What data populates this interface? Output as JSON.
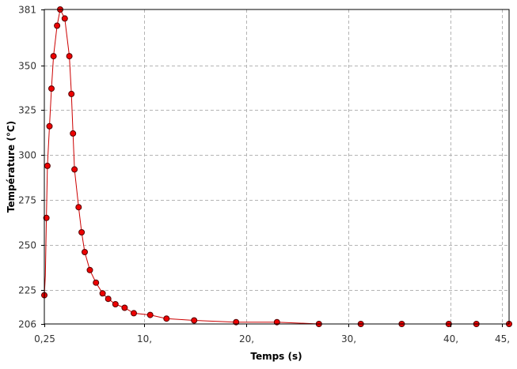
{
  "chart_data": {
    "type": "line",
    "xlabel": "Temps (s)",
    "ylabel": "Température (°C)",
    "xlim": [
      0.25,
      45.7
    ],
    "ylim": [
      206,
      381
    ],
    "xticks": [
      {
        "value": 0.25,
        "label": "0,25"
      },
      {
        "value": 10,
        "label": "10,"
      },
      {
        "value": 20,
        "label": "20,"
      },
      {
        "value": 30,
        "label": "30,"
      },
      {
        "value": 40,
        "label": "40,"
      },
      {
        "value": 45,
        "label": "45,"
      }
    ],
    "yticks": [
      {
        "value": 206,
        "label": "206"
      },
      {
        "value": 225,
        "label": "225"
      },
      {
        "value": 250,
        "label": "250"
      },
      {
        "value": 275,
        "label": "275"
      },
      {
        "value": 300,
        "label": "300"
      },
      {
        "value": 325,
        "label": "325"
      },
      {
        "value": 350,
        "label": "350"
      },
      {
        "value": 381,
        "label": "381"
      }
    ],
    "grid": true,
    "line_color": "#cc0000",
    "marker_color": "#ee0000",
    "marker_edge_color": "#550000",
    "series": [
      {
        "x": [
          0.25,
          0.35,
          0.45,
          0.55,
          0.75,
          0.95,
          1.15,
          1.5,
          1.8,
          2.25,
          2.7,
          2.9,
          3.05,
          3.2,
          3.6,
          3.9,
          4.2,
          4.7,
          5.3,
          5.95,
          6.5,
          7.2,
          8.1,
          9.0,
          10.6,
          12.2,
          14.9,
          19.0,
          23.0,
          27.1,
          31.2,
          35.2,
          39.8,
          42.5,
          45.7
        ],
        "y": [
          222,
          233,
          265,
          294,
          316,
          337,
          355,
          372,
          381,
          376,
          355,
          334,
          312,
          292,
          271,
          257,
          246,
          236,
          229,
          223,
          220,
          217,
          215,
          212,
          211,
          209,
          208,
          207,
          207,
          206,
          206,
          206,
          206,
          206,
          206
        ],
        "markers": [
          true,
          false,
          true,
          true,
          true,
          true,
          true,
          true,
          true,
          true,
          true,
          true,
          true,
          true,
          true,
          true,
          true,
          true,
          true,
          true,
          true,
          true,
          true,
          true,
          true,
          true,
          true,
          true,
          true,
          true,
          true,
          true,
          true,
          true,
          true
        ]
      }
    ]
  }
}
